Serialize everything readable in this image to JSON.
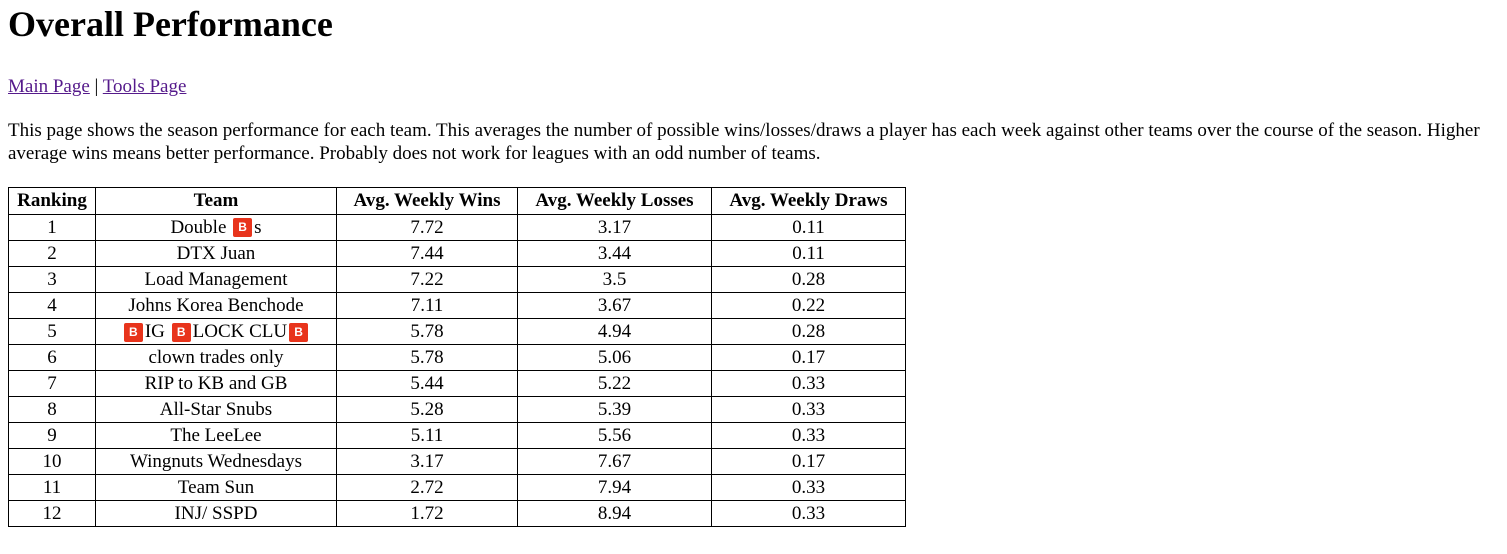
{
  "page": {
    "title": "Overall Performance",
    "nav": {
      "main_link": "Main Page",
      "separator": "|",
      "tools_link": "Tools Page"
    },
    "description": "This page shows the season performance for each team. This averages the number of possible wins/losses/draws a player has each week against other teams over the course of the season. Higher average wins means better performance. Probably does not work for leagues with an odd number of teams."
  },
  "emoji": {
    "b_letter": "B",
    "b_color": "#e8341c",
    "icon": "b-button-emoji-icon"
  },
  "table": {
    "headers": [
      "Ranking",
      "Team",
      "Avg. Weekly Wins",
      "Avg. Weekly Losses",
      "Avg. Weekly Draws"
    ],
    "rows": [
      {
        "rank": "1",
        "team_parts": [
          {
            "t": "Double "
          },
          {
            "e": "B"
          },
          {
            "t": "s"
          }
        ],
        "wins": "7.72",
        "losses": "3.17",
        "draws": "0.11"
      },
      {
        "rank": "2",
        "team_parts": [
          {
            "t": "DTX Juan"
          }
        ],
        "wins": "7.44",
        "losses": "3.44",
        "draws": "0.11"
      },
      {
        "rank": "3",
        "team_parts": [
          {
            "t": "Load Management"
          }
        ],
        "wins": "7.22",
        "losses": "3.5",
        "draws": "0.28"
      },
      {
        "rank": "4",
        "team_parts": [
          {
            "t": "Johns Korea Benchode"
          }
        ],
        "wins": "7.11",
        "losses": "3.67",
        "draws": "0.22"
      },
      {
        "rank": "5",
        "team_parts": [
          {
            "e": "B"
          },
          {
            "t": "IG "
          },
          {
            "e": "B"
          },
          {
            "t": "LOCK CLU"
          },
          {
            "e": "B"
          }
        ],
        "wins": "5.78",
        "losses": "4.94",
        "draws": "0.28"
      },
      {
        "rank": "6",
        "team_parts": [
          {
            "t": "clown trades only"
          }
        ],
        "wins": "5.78",
        "losses": "5.06",
        "draws": "0.17"
      },
      {
        "rank": "7",
        "team_parts": [
          {
            "t": "RIP to KB and GB"
          }
        ],
        "wins": "5.44",
        "losses": "5.22",
        "draws": "0.33"
      },
      {
        "rank": "8",
        "team_parts": [
          {
            "t": "All-Star Snubs"
          }
        ],
        "wins": "5.28",
        "losses": "5.39",
        "draws": "0.33"
      },
      {
        "rank": "9",
        "team_parts": [
          {
            "t": "The LeeLee"
          }
        ],
        "wins": "5.11",
        "losses": "5.56",
        "draws": "0.33"
      },
      {
        "rank": "10",
        "team_parts": [
          {
            "t": "Wingnuts Wednesdays"
          }
        ],
        "wins": "3.17",
        "losses": "7.67",
        "draws": "0.17"
      },
      {
        "rank": "11",
        "team_parts": [
          {
            "t": "Team Sun"
          }
        ],
        "wins": "2.72",
        "losses": "7.94",
        "draws": "0.33"
      },
      {
        "rank": "12",
        "team_parts": [
          {
            "t": "INJ/ SSPD"
          }
        ],
        "wins": "1.72",
        "losses": "8.94",
        "draws": "0.33"
      }
    ]
  }
}
